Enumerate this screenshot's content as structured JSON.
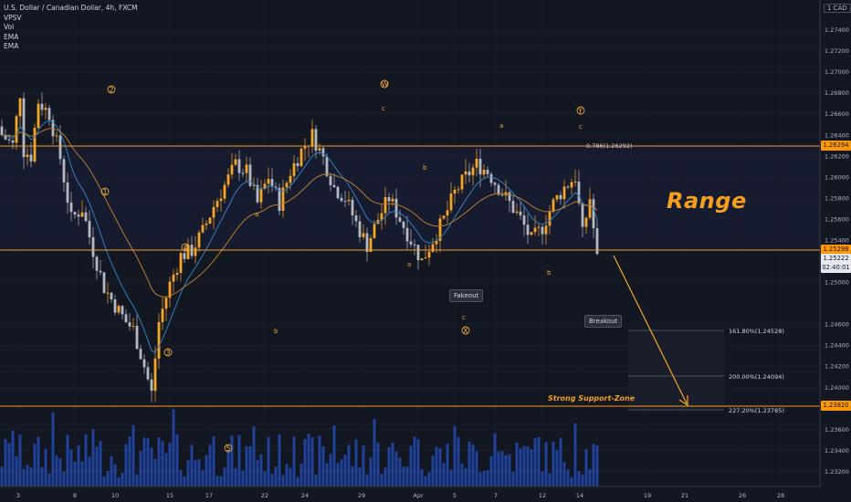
{
  "legend": {
    "symbol": "U.S. Dollar / Canadian Dollar, 4h, FXCM",
    "indicators": [
      "VPSV",
      "Vol",
      "EMA",
      "EMA"
    ]
  },
  "currency_button": "1 CAD",
  "price_axis": {
    "labels": [
      "1.27400",
      "1.27200",
      "1.27000",
      "1.26800",
      "1.26600",
      "1.26400",
      "1.26200",
      "1.26000",
      "1.25800",
      "1.25600",
      "1.25400",
      "1.25000",
      "1.24600",
      "1.24400",
      "1.24200",
      "1.24000",
      "1.23600",
      "1.23400",
      "1.23200"
    ]
  },
  "time_axis": {
    "labels": [
      "3",
      "8",
      "10",
      "15",
      "17",
      "22",
      "24",
      "29",
      "Apr",
      "5",
      "7",
      "12",
      "14",
      "19",
      "21",
      "26",
      "28"
    ]
  },
  "price_tags": {
    "range_top": "1.26294",
    "range_bottom": "1.25298",
    "last_price": "1.25222",
    "countdown": "02:40:01",
    "support": "1.23820"
  },
  "annotations": {
    "range": "Range",
    "strong_support": "Strong Support-Zone",
    "fakeout": "Fakeout",
    "breakout": "Breakout",
    "fib_top": "0.786(1.26292)",
    "fib_161": "161.80%(1.24528)",
    "fib_200": "200.00%(1.24094)",
    "fib_227": "227.20%(1.23785)"
  },
  "waves": {
    "w1": "1",
    "w2": "2",
    "w3": "3",
    "w4": "4",
    "w5": "5",
    "W": "W",
    "X": "X",
    "Y": "Y",
    "a1": "a",
    "b1": "b",
    "a2": "a",
    "b2": "b",
    "c1": "c",
    "a3": "a",
    "b3": "b",
    "c2": "c",
    "c3": "c"
  },
  "colors": {
    "background": "#131722",
    "up_candle": "#f5a623",
    "down_candle": "#b4b8c2",
    "level_line": "#f59f1c",
    "ema_fast": "#2f7fc1",
    "ema_slow": "#b87a2e",
    "volume": "#2962ff"
  },
  "chart_data": {
    "type": "candlestick",
    "symbol": "USDCAD",
    "timeframe": "4h",
    "ylim": [
      1.231,
      1.2755
    ],
    "levels": [
      1.26294,
      1.25298,
      1.2382
    ],
    "close_path": [
      [
        0,
        1.264
      ],
      [
        3,
        1.263
      ],
      [
        5,
        1.268
      ],
      [
        6,
        1.2625
      ],
      [
        8,
        1.262
      ],
      [
        10,
        1.2672
      ],
      [
        13,
        1.266
      ],
      [
        16,
        1.2618
      ],
      [
        19,
        1.256
      ],
      [
        22,
        1.257
      ],
      [
        25,
        1.253
      ],
      [
        28,
        1.2495
      ],
      [
        31,
        1.2478
      ],
      [
        34,
        1.2462
      ],
      [
        36,
        1.2455
      ],
      [
        39,
        1.242
      ],
      [
        41,
        1.2394
      ],
      [
        43,
        1.2462
      ],
      [
        46,
        1.2498
      ],
      [
        49,
        1.2525
      ],
      [
        52,
        1.253
      ],
      [
        55,
        1.2548
      ],
      [
        58,
        1.2572
      ],
      [
        61,
        1.2592
      ],
      [
        64,
        1.2612
      ],
      [
        67,
        1.2605
      ],
      [
        70,
        1.2575
      ],
      [
        73,
        1.26
      ],
      [
        76,
        1.2575
      ],
      [
        79,
        1.2605
      ],
      [
        82,
        1.2625
      ],
      [
        85,
        1.264
      ],
      [
        88,
        1.2618
      ],
      [
        91,
        1.259
      ],
      [
        94,
        1.258
      ],
      [
        97,
        1.2556
      ],
      [
        100,
        1.2535
      ],
      [
        103,
        1.256
      ],
      [
        106,
        1.258
      ],
      [
        109,
        1.256
      ],
      [
        112,
        1.254
      ],
      [
        115,
        1.252
      ],
      [
        118,
        1.254
      ],
      [
        121,
        1.256
      ],
      [
        124,
        1.2585
      ],
      [
        127,
        1.26
      ],
      [
        130,
        1.2612
      ],
      [
        133,
        1.2605
      ],
      [
        136,
        1.259
      ],
      [
        139,
        1.2575
      ],
      [
        142,
        1.256
      ],
      [
        145,
        1.254
      ],
      [
        148,
        1.2552
      ],
      [
        151,
        1.2575
      ],
      [
        154,
        1.259
      ],
      [
        157,
        1.26
      ],
      [
        159,
        1.2545
      ],
      [
        161,
        1.258
      ],
      [
        163,
        1.2522
      ]
    ]
  }
}
